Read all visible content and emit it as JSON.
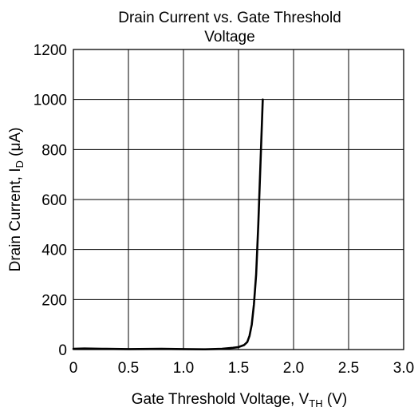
{
  "chart_data": {
    "type": "line",
    "title_lines": [
      "Drain Current vs. Gate Threshold",
      "Voltage"
    ],
    "xlabel": {
      "main": "Gate Threshold Voltage, V",
      "sub": "TH",
      "suffix": " (V)"
    },
    "ylabel": {
      "main": "Drain Current, I",
      "sub": "D",
      "suffix": " (μA)"
    },
    "xlim": [
      0,
      3.0
    ],
    "ylim": [
      0,
      1200
    ],
    "x_ticks": [
      0,
      0.5,
      1.0,
      1.5,
      2.0,
      2.5,
      3.0
    ],
    "x_tick_labels": [
      "0",
      "0.5",
      "1.0",
      "1.5",
      "2.0",
      "2.5",
      "3.0"
    ],
    "y_ticks": [
      0,
      200,
      400,
      600,
      800,
      1000,
      1200
    ],
    "y_tick_labels": [
      "0",
      "200",
      "400",
      "600",
      "800",
      "1000",
      "1200"
    ],
    "grid": true,
    "legend": "none",
    "line_color": "#000000",
    "series": [
      {
        "x": [
          0,
          0.1,
          0.3,
          0.5,
          0.8,
          1.0,
          1.2,
          1.35,
          1.45,
          1.5,
          1.55,
          1.58,
          1.6,
          1.62,
          1.64,
          1.66,
          1.68,
          1.7,
          1.72
        ],
        "y": [
          3,
          4,
          3,
          2,
          3,
          2,
          1,
          3,
          7,
          10,
          18,
          30,
          55,
          100,
          180,
          300,
          500,
          750,
          1000
        ]
      }
    ]
  }
}
